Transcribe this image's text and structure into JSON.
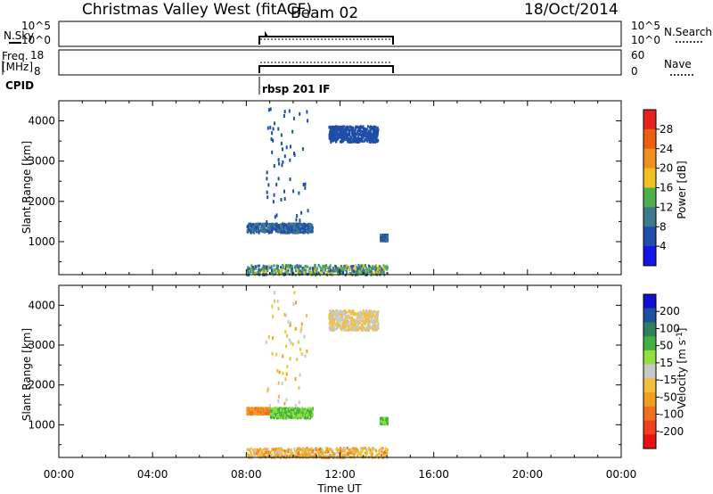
{
  "header": {
    "title": "Christmas Valley West (fitACF)",
    "beam": "Beam 02",
    "date": "18/Oct/2014"
  },
  "top_panels": {
    "nsky_label": "N.Sky",
    "nsky_ticks": [
      "10^5",
      "10^0"
    ],
    "nsearch_label": "N.Search",
    "freq_label": "Freq.",
    "freq_unit": "[MHz]",
    "freq_ticks": [
      "18",
      "8"
    ],
    "nave_label": "Nave",
    "nave_ticks": [
      "60",
      "0"
    ],
    "cpid_label": "CPID",
    "cpid_value": "rbsp 201 IF"
  },
  "colors": {
    "power": [
      "#1414e6",
      "#1e4ea8",
      "#3c7a8c",
      "#4caf50",
      "#f0c020",
      "#f09020",
      "#e86010",
      "#e82020"
    ],
    "velocity": [
      "#e81010",
      "#f04020",
      "#f07020",
      "#f0a020",
      "#f0c040",
      "#c8c8c8",
      "#90e040",
      "#40b040",
      "#308060",
      "#1e50a0",
      "#1010d0"
    ]
  },
  "chart_data": [
    {
      "type": "heatmap",
      "name": "power",
      "ylabel": "Slant Range [km]",
      "xlabel": "Time UT",
      "x_ticks": [
        "00:00",
        "04:00",
        "08:00",
        "12:00",
        "16:00",
        "20:00",
        "00:00"
      ],
      "y_ticks": [
        "1000",
        "2000",
        "3000",
        "4000"
      ],
      "ylim": [
        180,
        4500
      ],
      "colorbar_label": "Power [dB]",
      "colorbar_ticks": [
        "28",
        "24",
        "20",
        "16",
        "12",
        "8",
        "4"
      ],
      "data_time_range": [
        "08:00",
        "14:00"
      ],
      "regions": [
        {
          "t": [
            8.0,
            14.0
          ],
          "r": [
            200,
            450
          ],
          "level": [
            1,
            4
          ]
        },
        {
          "t": [
            8.0,
            10.8
          ],
          "r": [
            1250,
            1480
          ],
          "level": [
            1,
            2
          ]
        },
        {
          "t": [
            13.7,
            14.0
          ],
          "r": [
            1050,
            1200
          ],
          "level": [
            1,
            2
          ]
        },
        {
          "t": [
            8.8,
            10.6
          ],
          "r": [
            1400,
            4400
          ],
          "level": [
            1,
            1
          ]
        },
        {
          "t": [
            11.5,
            13.6
          ],
          "r": [
            3500,
            3900
          ],
          "level": [
            1,
            1
          ]
        }
      ]
    },
    {
      "type": "heatmap",
      "name": "velocity",
      "ylabel": "Slant Range [km]",
      "xlabel": "Time UT",
      "x_ticks": [
        "00:00",
        "04:00",
        "08:00",
        "12:00",
        "16:00",
        "20:00",
        "00:00"
      ],
      "y_ticks": [
        "1000",
        "2000",
        "3000",
        "4000"
      ],
      "ylim": [
        180,
        4500
      ],
      "colorbar_label": "Velocity [m s^-1]",
      "colorbar_ticks": [
        "200",
        "100",
        "50",
        "15",
        "-15",
        "-50",
        "-100",
        "-200"
      ],
      "data_time_range": [
        "08:00",
        "14:00"
      ],
      "regions": [
        {
          "t": [
            8.0,
            14.0
          ],
          "r": [
            200,
            450
          ],
          "level": [
            2,
            5
          ]
        },
        {
          "t": [
            8.0,
            9.0
          ],
          "r": [
            1300,
            1450
          ],
          "level": [
            2,
            3
          ]
        },
        {
          "t": [
            9.0,
            10.8
          ],
          "r": [
            1200,
            1450
          ],
          "level": [
            6,
            7
          ]
        },
        {
          "t": [
            13.7,
            14.0
          ],
          "r": [
            1050,
            1200
          ],
          "level": [
            6,
            7
          ]
        },
        {
          "t": [
            8.8,
            10.6
          ],
          "r": [
            1500,
            4400
          ],
          "level": [
            3,
            5
          ]
        },
        {
          "t": [
            11.5,
            13.6
          ],
          "r": [
            3400,
            3900
          ],
          "level": [
            4,
            5
          ]
        }
      ]
    }
  ]
}
